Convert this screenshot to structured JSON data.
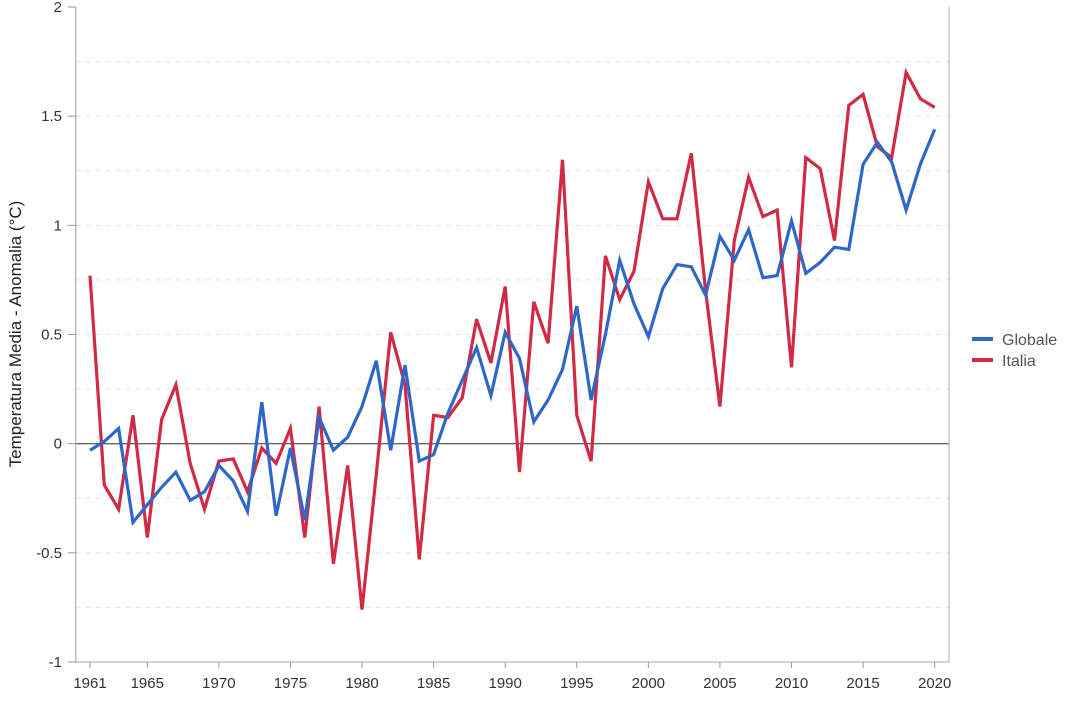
{
  "chart_data": {
    "type": "line",
    "title": "",
    "xlabel": "",
    "ylabel": "Temperatura Media - Anomalia (°C)",
    "xlim": [
      1960,
      2021
    ],
    "ylim": [
      -1,
      2
    ],
    "grid": true,
    "legend_position": "right",
    "y_ticks": [
      "-1",
      "-0.5",
      "0",
      "0.5",
      "1",
      "1.5",
      "2"
    ],
    "y_tick_values": [
      -1,
      -0.5,
      0,
      0.5,
      1,
      1.5,
      2
    ],
    "x_ticks": [
      "1961",
      "1965",
      "1970",
      "1975",
      "1980",
      "1985",
      "1990",
      "1995",
      "2000",
      "2005",
      "2010",
      "2015",
      "2020"
    ],
    "x_tick_values": [
      1961,
      1965,
      1970,
      1975,
      1980,
      1985,
      1990,
      1995,
      2000,
      2005,
      2010,
      2015,
      2020
    ],
    "x_start": 1961,
    "series": [
      {
        "name": "Globale",
        "color": "#2f67c9",
        "values": [
          -0.03,
          0.01,
          0.07,
          -0.36,
          -0.28,
          -0.2,
          -0.13,
          -0.26,
          -0.22,
          -0.1,
          -0.17,
          -0.31,
          0.19,
          -0.33,
          -0.02,
          -0.35,
          0.12,
          -0.03,
          0.03,
          0.17,
          0.38,
          -0.03,
          0.36,
          -0.08,
          -0.05,
          0.14,
          0.29,
          0.44,
          0.22,
          0.51,
          0.39,
          0.1,
          0.2,
          0.34,
          0.63,
          0.2,
          0.5,
          0.84,
          0.64,
          0.49,
          0.71,
          0.82,
          0.81,
          0.68,
          0.95,
          0.84,
          0.98,
          0.76,
          0.77,
          1.02,
          0.78,
          0.83,
          0.9,
          0.89,
          1.28,
          1.38,
          1.29,
          1.07,
          1.28,
          1.44
        ]
      },
      {
        "name": "Italia",
        "color": "#d02a44",
        "values": [
          0.77,
          -0.19,
          -0.3,
          0.13,
          -0.43,
          0.11,
          0.27,
          -0.09,
          -0.3,
          -0.08,
          -0.07,
          -0.22,
          -0.02,
          -0.09,
          0.07,
          -0.43,
          0.17,
          -0.55,
          -0.1,
          -0.76,
          -0.14,
          0.51,
          0.27,
          -0.53,
          0.13,
          0.12,
          0.21,
          0.57,
          0.37,
          0.72,
          -0.13,
          0.65,
          0.46,
          1.3,
          0.13,
          -0.08,
          0.86,
          0.66,
          0.79,
          1.2,
          1.03,
          1.03,
          1.33,
          0.7,
          0.17,
          0.93,
          1.22,
          1.04,
          1.07,
          0.35,
          1.31,
          1.26,
          0.93,
          1.55,
          1.6,
          1.36,
          1.31,
          1.7,
          1.58,
          1.54
        ]
      }
    ]
  }
}
